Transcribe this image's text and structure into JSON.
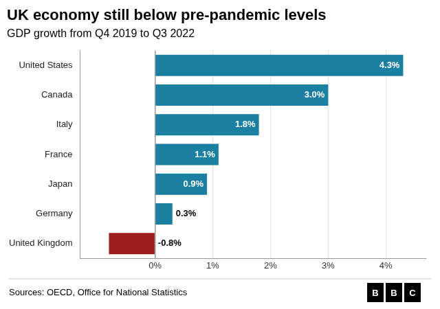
{
  "chart_data": {
    "type": "bar",
    "orientation": "horizontal",
    "title": "UK economy still below pre-pandemic levels",
    "subtitle": "GDP growth from Q4 2019 to Q3 2022",
    "annotations": [
      "Sources: OECD, Office for National Statistics",
      "BBC"
    ],
    "categories": [
      "United States",
      "Canada",
      "Italy",
      "France",
      "Japan",
      "Germany",
      "United Kingdom"
    ],
    "values": [
      4.3,
      3.0,
      1.8,
      1.1,
      0.9,
      0.3,
      -0.8
    ],
    "value_labels": [
      "4.3%",
      "3.0%",
      "1.8%",
      "1.1%",
      "0.9%",
      "0.3%",
      "-0.8%"
    ],
    "data_labels": true,
    "colors": [
      "#1a7fa0",
      "#1a7fa0",
      "#1a7fa0",
      "#1a7fa0",
      "#1a7fa0",
      "#1a7fa0",
      "#9b1c1c"
    ],
    "xlim": [
      -1.3,
      4.7
    ],
    "xticks": [
      {
        "value": 0,
        "label": "0%"
      },
      {
        "value": 1,
        "label": "1%"
      },
      {
        "value": 2,
        "label": "2%"
      },
      {
        "value": 3,
        "label": "3%"
      },
      {
        "value": 4,
        "label": "4%"
      }
    ],
    "grid": true
  }
}
